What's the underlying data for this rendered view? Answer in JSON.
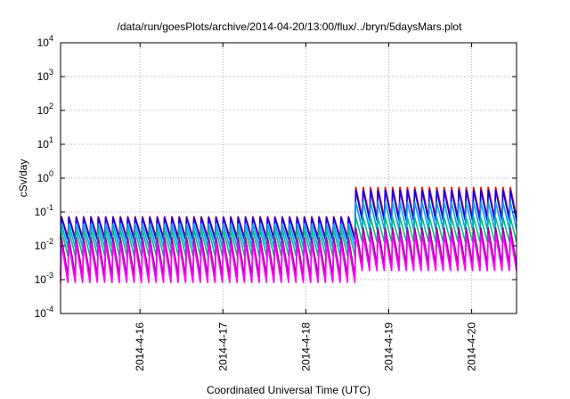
{
  "chart_data": {
    "type": "line",
    "title": "/data/run/goesPlots/archive/2014-04-20/13:00/flux/../bryn/5daysMars.plot",
    "xlabel": "Coordinated Universal Time (UTC)",
    "ylabel": "cSv/day",
    "yscale": "log",
    "ylim": [
      0.0001,
      10000
    ],
    "y_ticks": [
      {
        "value": 0.0001,
        "mantissa": "10",
        "exp": "-4"
      },
      {
        "value": 0.001,
        "mantissa": "10",
        "exp": "-3"
      },
      {
        "value": 0.01,
        "mantissa": "10",
        "exp": "-2"
      },
      {
        "value": 0.1,
        "mantissa": "10",
        "exp": "-1"
      },
      {
        "value": 1,
        "mantissa": "10",
        "exp": "0"
      },
      {
        "value": 10,
        "mantissa": "10",
        "exp": "1"
      },
      {
        "value": 100,
        "mantissa": "10",
        "exp": "2"
      },
      {
        "value": 1000,
        "mantissa": "10",
        "exp": "3"
      },
      {
        "value": 10000,
        "mantissa": "10",
        "exp": "4"
      }
    ],
    "x_start": "2014-04-15T01:00",
    "x_end": "2014-04-20T13:00",
    "x_ticks": [
      {
        "label": "2014-4-16",
        "time": "2014-04-16T00:00"
      },
      {
        "label": "2014-4-17",
        "time": "2014-04-17T00:00"
      },
      {
        "label": "2014-4-18",
        "time": "2014-04-18T00:00"
      },
      {
        "label": "2014-4-19",
        "time": "2014-04-19T00:00"
      },
      {
        "label": "2014-4-20",
        "time": "2014-04-20T00:00"
      }
    ],
    "grid": true,
    "oscillation_period_hours": 2.13,
    "step_time": "2014-04-18T14:00",
    "series": [
      {
        "color": "#ff0000",
        "before": {
          "peak": 0.075,
          "trough": 0.018
        },
        "after": {
          "peak": 0.55,
          "trough": 0.07
        }
      },
      {
        "color": "#0000ff",
        "before": {
          "peak": 0.07,
          "trough": 0.015
        },
        "after": {
          "peak": 0.45,
          "trough": 0.055
        }
      },
      {
        "color": "#00a0ff",
        "before": {
          "peak": 0.045,
          "trough": 0.009
        },
        "after": {
          "peak": 0.2,
          "trough": 0.03
        }
      },
      {
        "color": "#00c080",
        "before": {
          "peak": 0.03,
          "trough": 0.005
        },
        "after": {
          "peak": 0.07,
          "trough": 0.013
        }
      },
      {
        "color": "#a000a0",
        "before": {
          "peak": 0.018,
          "trough": 0.0013
        },
        "after": {
          "peak": 0.035,
          "trough": 0.0028
        }
      },
      {
        "color": "#ff00ff",
        "before": {
          "peak": 0.012,
          "trough": 0.0008
        },
        "after": {
          "peak": 0.022,
          "trough": 0.0018
        }
      }
    ]
  }
}
